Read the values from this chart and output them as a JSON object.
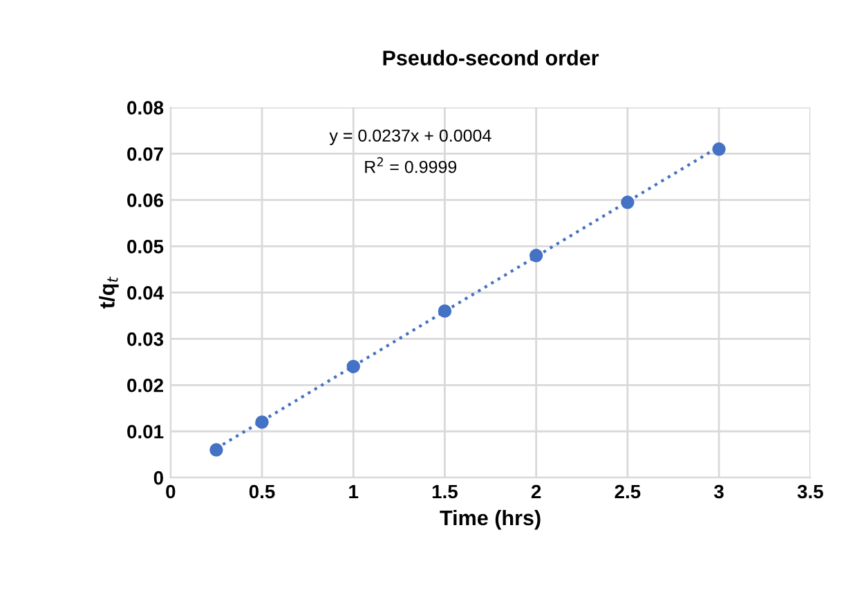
{
  "chart_data": {
    "type": "scatter",
    "title": "Pseudo-second order",
    "xlabel": "Time (hrs)",
    "ylabel": "t/q$_{t}$",
    "xlim": [
      0,
      3.5
    ],
    "xticks": [
      0,
      0.5,
      1,
      1.5,
      2,
      2.5,
      3,
      3.5
    ],
    "ylim": [
      0,
      0.08
    ],
    "yticks": [
      0,
      0.01,
      0.02,
      0.03,
      0.04,
      0.05,
      0.06,
      0.07,
      0.08
    ],
    "grid": true,
    "series": [
      {
        "marker": "circle",
        "color": "#4472c4",
        "x": [
          0.25,
          0.5,
          1,
          1.5,
          2,
          2.5,
          3
        ],
        "values": [
          0.006,
          0.012,
          0.024,
          0.036,
          0.048,
          0.0595,
          0.071
        ]
      },
      {
        "type": "line",
        "marker": "none",
        "color": "#4472c4",
        "line_style": "dotted",
        "x": [
          0.25,
          3
        ],
        "values": [
          0.0063,
          0.0715
        ]
      }
    ],
    "annotations": [
      "y = 0.0237x + 0.0004",
      "R$^{2}$ = 0.9999"
    ]
  }
}
